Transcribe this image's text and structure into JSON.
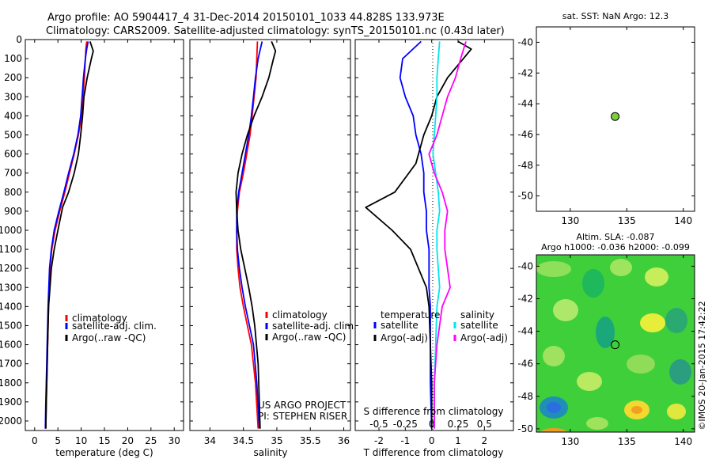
{
  "title_line1": "Argo profile: AO 5904417_4 31-Dec-2014 20150101_1033 44.828S 133.973E",
  "title_line2": "Climatology: CARS2009. Satellite-adjusted climatology: synTS_20150101.nc (0.43d later)",
  "colors": {
    "climatology": "#ff0000",
    "satellite": "#0000ff",
    "argo": "#000000",
    "salinity_satellite": "#00e5ee",
    "salinity_argo": "#ff00ff",
    "marker": "#7ccd3c"
  },
  "chart_data": [
    {
      "type": "line",
      "xlabel": "temperature (deg C)",
      "ylabel": "",
      "xlim": [
        -2,
        32
      ],
      "ylim": [
        2050,
        0
      ],
      "xticks": [
        "0",
        "5",
        "10",
        "15",
        "20",
        "25",
        "30"
      ],
      "yticks": [
        "0",
        "100",
        "200",
        "300",
        "400",
        "500",
        "600",
        "700",
        "800",
        "900",
        "1000",
        "1100",
        "1200",
        "1300",
        "1400",
        "1500",
        "1600",
        "1700",
        "1800",
        "1900",
        "2000"
      ],
      "legend": [
        "climatology",
        "satellite-adj. clim.",
        "Argo(..raw -QC)"
      ],
      "series": [
        {
          "name": "climatology",
          "x": [
            11.2,
            11.0,
            10.9,
            10.7,
            10.4,
            10.1,
            9.4,
            8.5,
            7.5,
            6.5,
            5.4,
            4.4,
            3.7,
            3.3,
            3.0,
            2.8,
            2.6,
            2.5,
            2.4
          ],
          "y": [
            10,
            50,
            100,
            200,
            300,
            400,
            500,
            600,
            700,
            800,
            900,
            1000,
            1100,
            1200,
            1400,
            1600,
            1800,
            1900,
            2040
          ]
        },
        {
          "name": "satellite-adj. clim.",
          "x": [
            11.5,
            11.2,
            10.9,
            10.5,
            10.2,
            9.9,
            9.3,
            8.4,
            7.3,
            6.3,
            5.2,
            4.2,
            3.6,
            3.2,
            2.9,
            2.7,
            2.5,
            2.4,
            2.3
          ],
          "y": [
            10,
            50,
            100,
            200,
            300,
            400,
            500,
            600,
            700,
            800,
            900,
            1000,
            1100,
            1200,
            1400,
            1600,
            1800,
            1900,
            2040
          ]
        },
        {
          "name": "Argo(..raw -QC)",
          "x": [
            11.9,
            12.6,
            12.2,
            11.3,
            10.6,
            10.3,
            9.9,
            9.4,
            8.5,
            7.3,
            6.0,
            5.0,
            4.2,
            3.6,
            3.3,
            3.0,
            2.8,
            2.6,
            2.5,
            2.4
          ],
          "y": [
            10,
            60,
            100,
            200,
            300,
            400,
            500,
            600,
            700,
            800,
            880,
            1000,
            1100,
            1200,
            1300,
            1400,
            1600,
            1800,
            1900,
            2040
          ]
        }
      ]
    },
    {
      "type": "line",
      "xlabel": "salinity",
      "ylabel": "",
      "xlim": [
        33.7,
        36.1
      ],
      "ylim": [
        2050,
        0
      ],
      "xticks": [
        "34",
        "34.5",
        "35",
        "35.5",
        "36"
      ],
      "legend": [
        "climatology",
        "satellite-adj. clim.",
        "Argo(..raw -QC)"
      ],
      "annotations": [
        "US ARGO PROJECT",
        "PI: STEPHEN RISER"
      ],
      "series": [
        {
          "name": "climatology",
          "x": [
            34.71,
            34.7,
            34.69,
            34.66,
            34.63,
            34.6,
            34.55,
            34.5,
            34.44,
            34.41,
            34.4,
            34.4,
            34.42,
            34.45,
            34.5,
            34.56,
            34.62,
            34.68,
            34.72
          ],
          "y": [
            10,
            100,
            200,
            300,
            400,
            500,
            600,
            700,
            800,
            900,
            1000,
            1100,
            1200,
            1300,
            1400,
            1500,
            1600,
            1800,
            2040
          ]
        },
        {
          "name": "satellite-adj. clim.",
          "x": [
            34.78,
            34.72,
            34.68,
            34.65,
            34.62,
            34.58,
            34.53,
            34.48,
            34.43,
            34.4,
            34.4,
            34.41,
            34.44,
            34.48,
            34.53,
            34.59,
            34.65,
            34.7,
            34.74
          ],
          "y": [
            10,
            100,
            200,
            300,
            400,
            500,
            600,
            700,
            800,
            900,
            1000,
            1100,
            1200,
            1300,
            1400,
            1500,
            1600,
            1800,
            2040
          ]
        },
        {
          "name": "Argo(..raw -QC)",
          "x": [
            34.92,
            34.98,
            34.95,
            34.88,
            34.78,
            34.66,
            34.56,
            34.48,
            34.42,
            34.39,
            34.4,
            34.42,
            34.46,
            34.52,
            34.58,
            34.63,
            34.67,
            34.72,
            34.75
          ],
          "y": [
            10,
            60,
            100,
            200,
            300,
            400,
            500,
            600,
            700,
            800,
            900,
            1000,
            1100,
            1200,
            1300,
            1400,
            1500,
            1700,
            2040
          ]
        }
      ]
    },
    {
      "type": "line",
      "xlabel": "T difference from climatology",
      "ylabel": "",
      "top_xlabel": "S difference from climatology",
      "xlim": [
        -2.9,
        3.1
      ],
      "ylim": [
        2050,
        0
      ],
      "xticks": [
        "-2",
        "-1",
        "0",
        "1",
        "2"
      ],
      "top_xticks": [
        "-0.5",
        "-0.25",
        "0",
        "0.25",
        "0.5"
      ],
      "legend_headers": [
        "temperature",
        "salinity"
      ],
      "legend": [
        "satellite",
        "Argo(-adj)",
        "satellite",
        "Argo(-adj)"
      ],
      "series": [
        {
          "name": "temperature satellite",
          "x": [
            -0.4,
            -1.1,
            -1.2,
            -1.0,
            -0.7,
            -0.6,
            -0.4,
            -0.3,
            -0.3,
            -0.2,
            -0.2,
            -0.1,
            -0.1,
            -0.1,
            -0.05,
            -0.05,
            -0.05,
            0.0
          ],
          "y": [
            10,
            100,
            200,
            300,
            400,
            500,
            600,
            700,
            800,
            900,
            1000,
            1100,
            1200,
            1300,
            1400,
            1600,
            1800,
            2040
          ]
        },
        {
          "name": "temperature Argo(-adj)",
          "x": [
            1.0,
            1.5,
            1.2,
            0.6,
            0.2,
            0.0,
            -0.3,
            -0.6,
            -1.4,
            -2.5,
            -1.5,
            -0.8,
            -0.5,
            -0.2,
            -0.1,
            -0.05,
            0.0,
            0.0
          ],
          "y": [
            10,
            50,
            100,
            200,
            300,
            400,
            500,
            650,
            800,
            880,
            1000,
            1100,
            1200,
            1300,
            1400,
            1600,
            1800,
            2040
          ]
        },
        {
          "name": "salinity satellite",
          "x": [
            0.3,
            0.25,
            0.2,
            0.2,
            0.15,
            0.1,
            0.05,
            0.15,
            0.25,
            0.3,
            0.2,
            0.2,
            0.25,
            0.3,
            0.2,
            0.15,
            0.1,
            0.1
          ],
          "y": [
            10,
            100,
            200,
            300,
            400,
            500,
            600,
            700,
            800,
            900,
            1000,
            1100,
            1200,
            1300,
            1400,
            1600,
            1800,
            2040
          ]
        },
        {
          "name": "salinity Argo(-adj)",
          "x": [
            1.3,
            1.1,
            0.9,
            0.6,
            0.4,
            0.2,
            -0.1,
            0.1,
            0.4,
            0.6,
            0.5,
            0.5,
            0.6,
            0.7,
            0.4,
            0.2,
            0.1,
            0.1
          ],
          "y": [
            10,
            100,
            200,
            300,
            400,
            500,
            600,
            700,
            800,
            900,
            1000,
            1100,
            1200,
            1300,
            1400,
            1600,
            1800,
            2040
          ]
        }
      ]
    },
    {
      "type": "scatter",
      "title": "sat. SST: NaN Argo: 12.3",
      "xlim": [
        127,
        141
      ],
      "ylim": [
        -51,
        -39
      ],
      "xticks": [
        "130",
        "135",
        "140"
      ],
      "yticks": [
        "-40",
        "-42",
        "-44",
        "-46",
        "-48",
        "-50"
      ],
      "points": [
        {
          "x": 133.97,
          "y": -44.83
        }
      ]
    },
    {
      "type": "heatmap",
      "title_line1": "Altim. SLA: -0.087",
      "title_line2": "Argo h1000: -0.036 h2000: -0.099",
      "xlim": [
        127,
        141
      ],
      "ylim": [
        -50.2,
        -39.3
      ],
      "xticks": [
        "130",
        "135",
        "140"
      ],
      "yticks": [
        "-40",
        "-42",
        "-44",
        "-46",
        "-48",
        "-50"
      ],
      "points": [
        {
          "x": 133.97,
          "y": -44.83
        }
      ],
      "side_text": "©IMOS 20-Jan-2015 17:42:22"
    }
  ]
}
